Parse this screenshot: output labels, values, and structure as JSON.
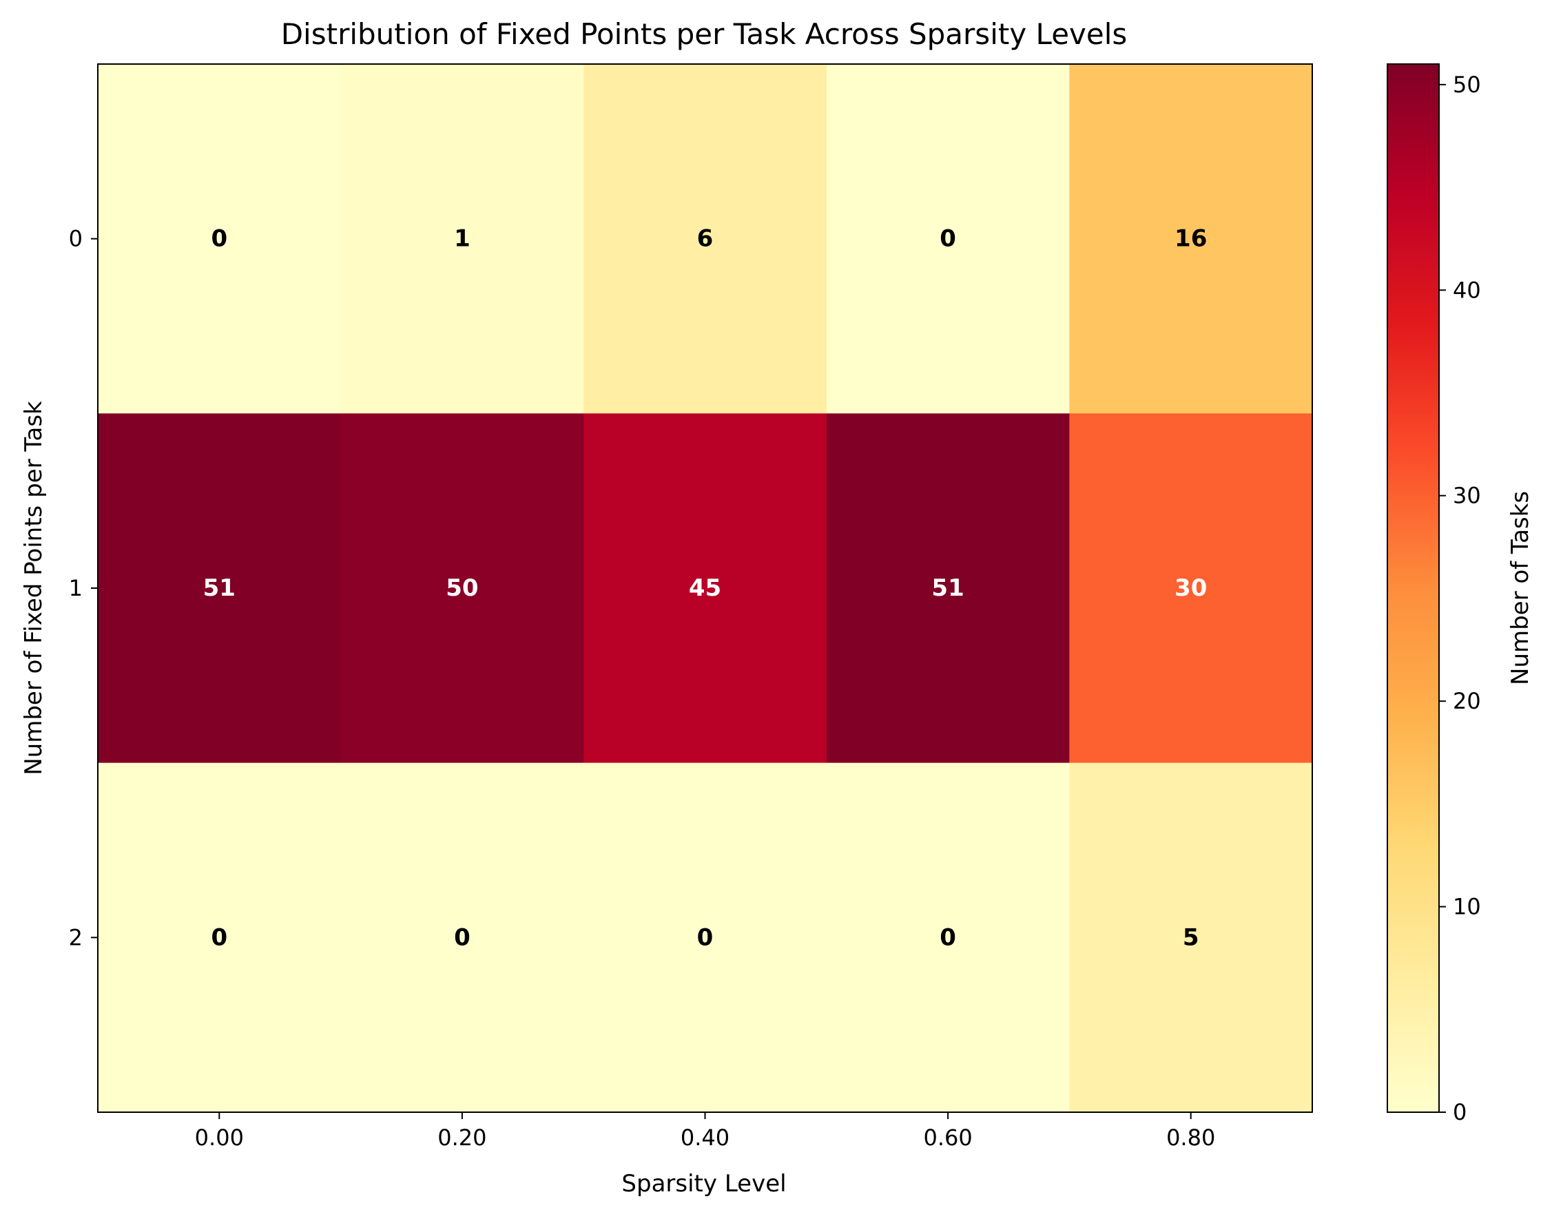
{
  "chart_data": {
    "type": "heatmap",
    "title": "Distribution of Fixed Points per Task Across Sparsity Levels",
    "xlabel": "Sparsity Level",
    "ylabel": "Number of Fixed Points per Task",
    "x_categories": [
      "0.00",
      "0.20",
      "0.40",
      "0.60",
      "0.80"
    ],
    "y_categories": [
      "0",
      "1",
      "2"
    ],
    "values": [
      [
        0,
        1,
        6,
        0,
        16
      ],
      [
        51,
        50,
        45,
        51,
        30
      ],
      [
        0,
        0,
        0,
        0,
        5
      ]
    ],
    "cell_value_labels": true,
    "colormap": "YlOrRd",
    "vmin": 0,
    "vmax": 51,
    "colorbar": {
      "label": "Number of Tasks",
      "ticks": [
        "0",
        "10",
        "20",
        "30",
        "40",
        "50"
      ],
      "tick_values": [
        0,
        10,
        20,
        30,
        40,
        50
      ]
    },
    "grid": false
  }
}
